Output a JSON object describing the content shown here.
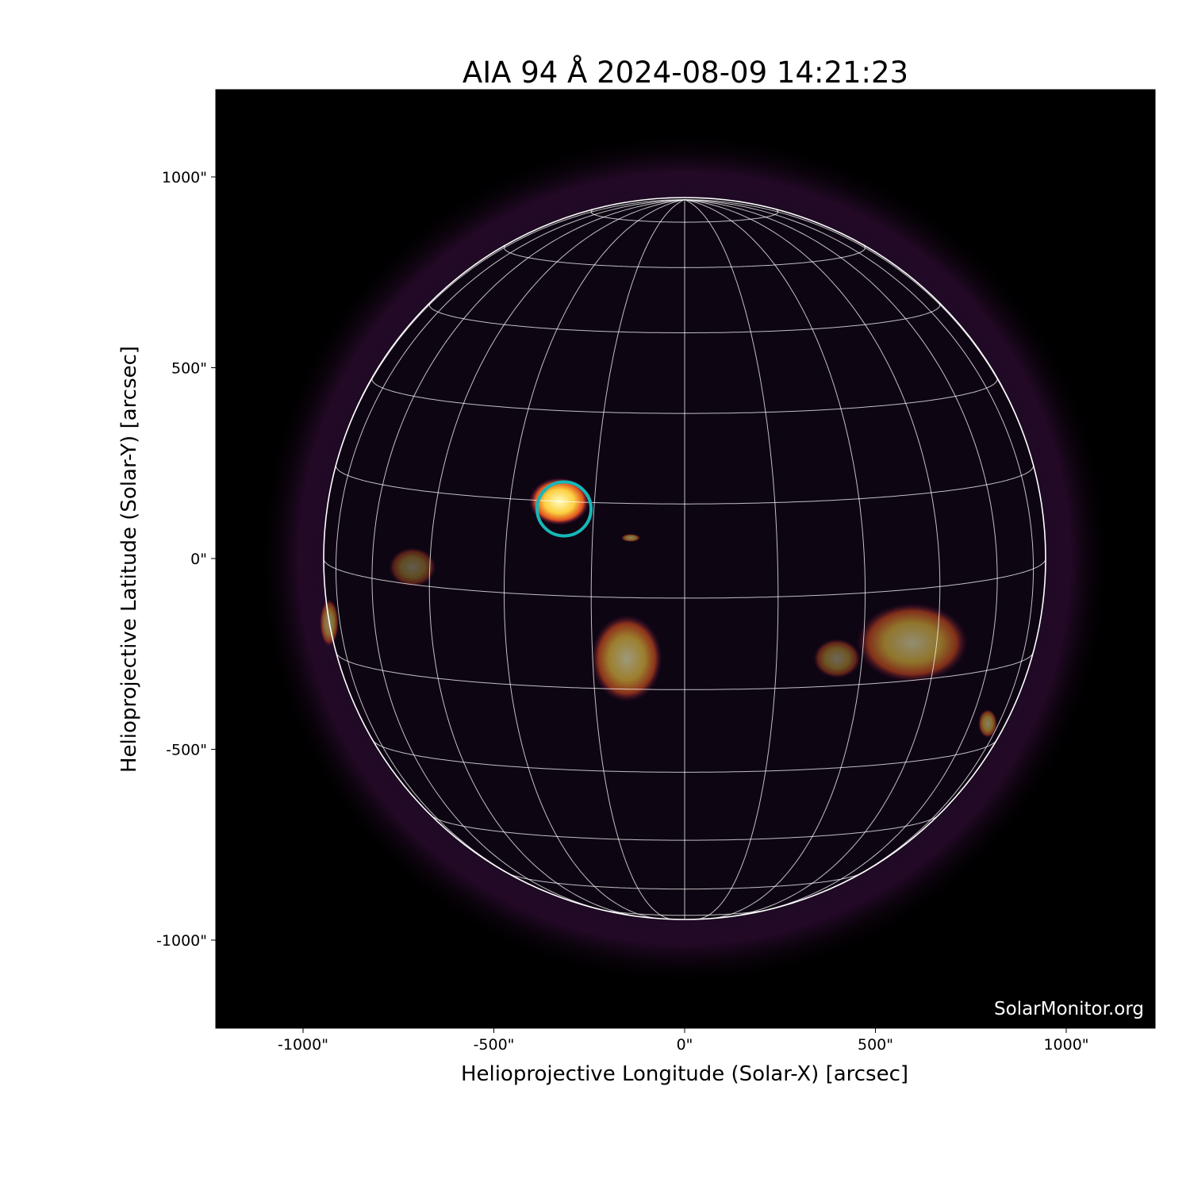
{
  "chart_data": {
    "type": "image",
    "title": "AIA 94 Å 2024-08-09 14:21:23",
    "xlabel": "Helioprojective Longitude (Solar-X) [arcsec]",
    "ylabel": "Helioprojective Latitude (Solar-Y) [arcsec]",
    "xlim": [
      -1230,
      1230
    ],
    "ylim": [
      -1230,
      1230
    ],
    "x_ticks": [
      {
        "value": -1000,
        "label": "-1000\""
      },
      {
        "value": -500,
        "label": "-500\""
      },
      {
        "value": 0,
        "label": "0\""
      },
      {
        "value": 500,
        "label": "500\""
      },
      {
        "value": 1000,
        "label": "1000\""
      }
    ],
    "y_ticks": [
      {
        "value": 1000,
        "label": "1000\""
      },
      {
        "value": 500,
        "label": "500\""
      },
      {
        "value": 0,
        "label": "0\""
      },
      {
        "value": -500,
        "label": "-500\""
      },
      {
        "value": -1000,
        "label": "-1000\""
      }
    ],
    "colormap": "inferno",
    "solar_radius_arcsec": 946,
    "grid_spacing_deg": 15,
    "grid_color": "#ffffff",
    "marker": {
      "shape": "circle",
      "x": -316,
      "y": 130,
      "color": "#17b8b8"
    },
    "watermark": "SolarMonitor.org"
  }
}
